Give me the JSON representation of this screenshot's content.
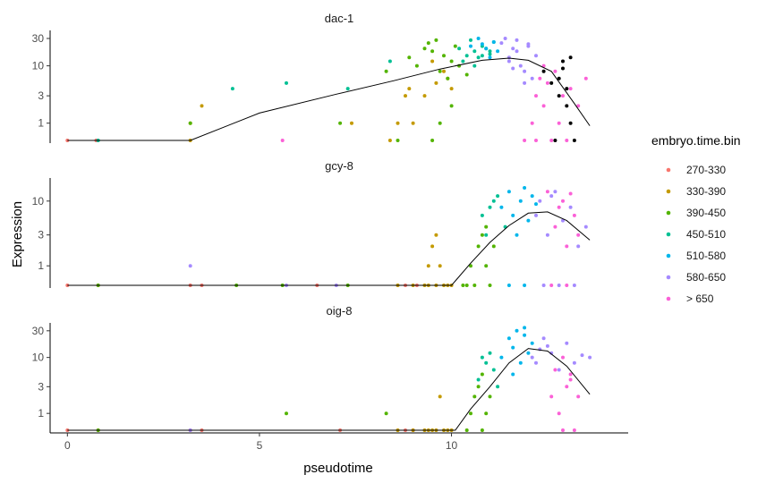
{
  "chart_data": {
    "type": "scatter",
    "xlabel": "pseudotime",
    "ylabel": "Expression",
    "xlim": [
      -0.45,
      14.6
    ],
    "xticks": [
      0,
      5,
      10
    ],
    "y_scale": "log",
    "legend": {
      "title": "embryo.time.bin",
      "position": "right",
      "entries": [
        {
          "label": "270-330",
          "color": "#F8766D"
        },
        {
          "label": "330-390",
          "color": "#C49A00"
        },
        {
          "label": "390-450",
          "color": "#53B400"
        },
        {
          "label": "450-510",
          "color": "#00C094"
        },
        {
          "label": "510-580",
          "color": "#00B6EB"
        },
        {
          "label": "580-650",
          "color": "#A58AFF"
        },
        {
          "label": "> 650",
          "color": "#FB61D7"
        }
      ]
    },
    "facets": [
      {
        "title": "dac-1",
        "yticks": [
          {
            "label": "30",
            "value": 30
          },
          {
            "label": "10",
            "value": 10
          },
          {
            "label": "3",
            "value": 3
          },
          {
            "label": "1",
            "value": 1
          }
        ],
        "ylim": [
          0.5,
          40
        ],
        "trend": [
          [
            0,
            0.5
          ],
          [
            3.2,
            0.5
          ],
          [
            5,
            1.5
          ],
          [
            7,
            3.2
          ],
          [
            8.5,
            5.5
          ],
          [
            9.7,
            8.8
          ],
          [
            10.8,
            12.5
          ],
          [
            11.5,
            13.6
          ],
          [
            12,
            12.5
          ],
          [
            12.6,
            8
          ],
          [
            13.2,
            2.2
          ],
          [
            13.6,
            0.9
          ]
        ],
        "bins": [
          {
            "x": [
              0,
              0.75
            ],
            "y": [
              0.5,
              0.5
            ]
          },
          {
            "x": [
              3.2,
              3.2,
              3.5,
              7.4,
              8.4,
              8.6,
              8.8,
              8.9,
              9.0,
              9.3,
              9.5,
              9.6,
              9.8,
              9.9,
              10.0
            ],
            "y": [
              0.5,
              1,
              2,
              1,
              0.5,
              1,
              3,
              4,
              1,
              3,
              12,
              5,
              8,
              6,
              4
            ]
          },
          {
            "x": [
              3.2,
              8.3,
              8.9,
              9.1,
              9.3,
              9.4,
              9.5,
              9.6,
              9.7,
              9.8,
              9.9,
              10.0,
              10.1,
              10.2,
              10.4,
              7.1,
              8.6,
              9.5,
              9.7,
              10.0
            ],
            "y": [
              1,
              8,
              14,
              10,
              20,
              25,
              18,
              28,
              8,
              15,
              6,
              12,
              22,
              10,
              7,
              1,
              0.5,
              0.5,
              1,
              2
            ]
          },
          {
            "x": [
              0.8,
              4.3,
              5.7,
              7.3,
              8.4,
              10.2,
              10.4,
              10.5,
              10.6,
              10.7,
              10.8,
              10.9,
              11.0,
              11.1,
              10.3,
              10.6,
              10.8,
              11.0
            ],
            "y": [
              0.5,
              4,
              5,
              4,
              12,
              20,
              15,
              28,
              18,
              14,
              22,
              20,
              16,
              26,
              12,
              10,
              15,
              18
            ]
          },
          {
            "x": [
              10.5,
              10.7,
              10.9,
              11.1,
              11.2,
              11.0,
              10.8
            ],
            "y": [
              22,
              30,
              20,
              26,
              18,
              14,
              24
            ]
          },
          {
            "x": [
              11.3,
              11.4,
              11.5,
              11.6,
              11.7,
              11.8,
              11.9,
              12.0,
              12.1,
              12.2,
              11.5,
              11.7,
              11.9,
              12.0,
              11.6
            ],
            "y": [
              25,
              30,
              14,
              20,
              28,
              10,
              8,
              24,
              6,
              15,
              12,
              18,
              5,
              22,
              9
            ]
          },
          {
            "x": [
              5.6,
              11.9,
              12.1,
              12.2,
              12.3,
              12.4,
              12.5,
              12.7,
              12.9,
              13.1,
              13.3,
              13.5,
              12.2,
              12.6,
              13.0,
              12.4,
              12.8
            ],
            "y": [
              0.5,
              0.5,
              1,
              3,
              6,
              10,
              5,
              8,
              3,
              4,
              2,
              6,
              0.5,
              0.5,
              0.5,
              2,
              1
            ]
          },
          {
            "x": [
              12.4,
              12.6,
              12.8,
              12.9,
              13.0,
              13.1,
              13.2,
              12.7,
              13.0,
              13.1,
              12.8,
              12.9
            ],
            "y": [
              8,
              5,
              3,
              12,
              2,
              14,
              0.5,
              0.5,
              4,
              1,
              6,
              9
            ]
          }
        ]
      },
      {
        "title": "gcy-8",
        "yticks": [
          {
            "label": "10",
            "value": 10
          },
          {
            "label": "3",
            "value": 3
          },
          {
            "label": "1",
            "value": 1
          }
        ],
        "ylim": [
          0.5,
          22
        ],
        "trend": [
          [
            0,
            0.5
          ],
          [
            10,
            0.5
          ],
          [
            10.5,
            1.1
          ],
          [
            11,
            2.3
          ],
          [
            11.5,
            4.2
          ],
          [
            12,
            6.5
          ],
          [
            12.5,
            6.8
          ],
          [
            13,
            5
          ],
          [
            13.6,
            2.5
          ]
        ],
        "bins": [
          {
            "x": [
              0,
              0.8,
              3.2,
              3.5,
              6.5,
              8.8,
              9.1
            ],
            "y": [
              0.5,
              0.5,
              0.5,
              0.5,
              0.5,
              0.5,
              0.5
            ]
          },
          {
            "x": [
              8.6,
              9.0,
              9.3,
              9.4,
              9.5,
              9.6,
              9.7,
              9.8,
              9.9,
              10.0,
              9.4,
              9.6
            ],
            "y": [
              0.5,
              0.5,
              0.5,
              1,
              2,
              3,
              1,
              0.5,
              0.5,
              0.5,
              0.5,
              0.5
            ]
          },
          {
            "x": [
              0.8,
              4.4,
              5.6,
              7.3,
              10.3,
              10.5,
              10.7,
              10.8,
              10.9,
              11.0,
              10.6,
              10.9,
              10.4,
              11.1
            ],
            "y": [
              0.5,
              0.5,
              0.5,
              0.5,
              0.5,
              1,
              2,
              3,
              1,
              0.5,
              0.5,
              4,
              0.5,
              2
            ]
          },
          {
            "x": [
              10.8,
              11.0,
              11.2,
              11.4,
              10.9,
              11.1
            ],
            "y": [
              6,
              8,
              12,
              4,
              3,
              10
            ]
          },
          {
            "x": [
              11.3,
              11.5,
              11.6,
              11.8,
              11.9,
              12.0,
              12.1,
              11.7,
              12.2,
              11.5,
              11.9
            ],
            "y": [
              8,
              14,
              6,
              10,
              16,
              5,
              12,
              3,
              9,
              0.5,
              0.5
            ]
          },
          {
            "x": [
              3.2,
              5.7,
              7.0,
              12.2,
              12.3,
              12.5,
              12.7,
              12.9,
              13.1,
              13.3,
              13.5,
              12.4,
              12.8,
              13.2,
              12.6
            ],
            "y": [
              1,
              0.5,
              0.5,
              6,
              10,
              3,
              14,
              5,
              8,
              2,
              4,
              0.5,
              0.5,
              0.5,
              12
            ]
          },
          {
            "x": [
              12.5,
              12.7,
              12.9,
              13.0,
              13.1,
              13.2,
              13.3,
              12.6,
              13.0,
              12.8
            ],
            "y": [
              14,
              4,
              10,
              2,
              13,
              6,
              3,
              0.5,
              0.5,
              8
            ]
          }
        ]
      },
      {
        "title": "oig-8",
        "yticks": [
          {
            "label": "30",
            "value": 30
          },
          {
            "label": "10",
            "value": 10
          },
          {
            "label": "3",
            "value": 3
          },
          {
            "label": "1",
            "value": 1
          }
        ],
        "ylim": [
          0.5,
          40
        ],
        "trend": [
          [
            0,
            0.5
          ],
          [
            10.1,
            0.5
          ],
          [
            10.5,
            1.2
          ],
          [
            11,
            3
          ],
          [
            11.5,
            8
          ],
          [
            12,
            14.5
          ],
          [
            12.5,
            13
          ],
          [
            13,
            7
          ],
          [
            13.6,
            2.2
          ]
        ],
        "bins": [
          {
            "x": [
              0,
              0.8,
              3.2,
              3.5,
              7.1,
              8.8,
              9.0
            ],
            "y": [
              0.5,
              0.5,
              0.5,
              0.5,
              0.5,
              0.5,
              0.5
            ]
          },
          {
            "x": [
              8.6,
              9.0,
              9.3,
              9.4,
              9.5,
              9.6,
              9.7,
              9.8,
              9.9,
              10.0
            ],
            "y": [
              0.5,
              0.5,
              0.5,
              0.5,
              0.5,
              0.5,
              2,
              0.5,
              0.5,
              0.5
            ]
          },
          {
            "x": [
              0.8,
              5.7,
              8.3,
              10.5,
              10.6,
              10.7,
              10.8,
              10.9,
              11.0,
              10.4,
              10.8
            ],
            "y": [
              0.5,
              1,
              1,
              1,
              2,
              3,
              5,
              1,
              2,
              0.5,
              0.5
            ]
          },
          {
            "x": [
              10.7,
              10.9,
              11.0,
              11.1,
              11.2,
              10.8
            ],
            "y": [
              4,
              8,
              12,
              6,
              3,
              10
            ]
          },
          {
            "x": [
              11.3,
              11.5,
              11.6,
              11.7,
              11.8,
              11.9,
              12.0,
              12.1,
              11.6,
              11.9
            ],
            "y": [
              10,
              22,
              15,
              30,
              8,
              25,
              12,
              18,
              5,
              34
            ]
          },
          {
            "x": [
              3.2,
              12.1,
              12.2,
              12.3,
              12.4,
              12.6,
              12.8,
              13.0,
              13.2,
              13.4,
              13.6,
              12.5
            ],
            "y": [
              0.5,
              10,
              8,
              14,
              22,
              12,
              6,
              18,
              8,
              11,
              10,
              16
            ]
          },
          {
            "x": [
              12.6,
              12.7,
              12.8,
              12.9,
              13.0,
              13.1,
              13.2,
              13.3,
              12.9,
              13.1
            ],
            "y": [
              2,
              6,
              1,
              10,
              3,
              5,
              0.5,
              2,
              0.5,
              4
            ]
          }
        ]
      }
    ]
  }
}
